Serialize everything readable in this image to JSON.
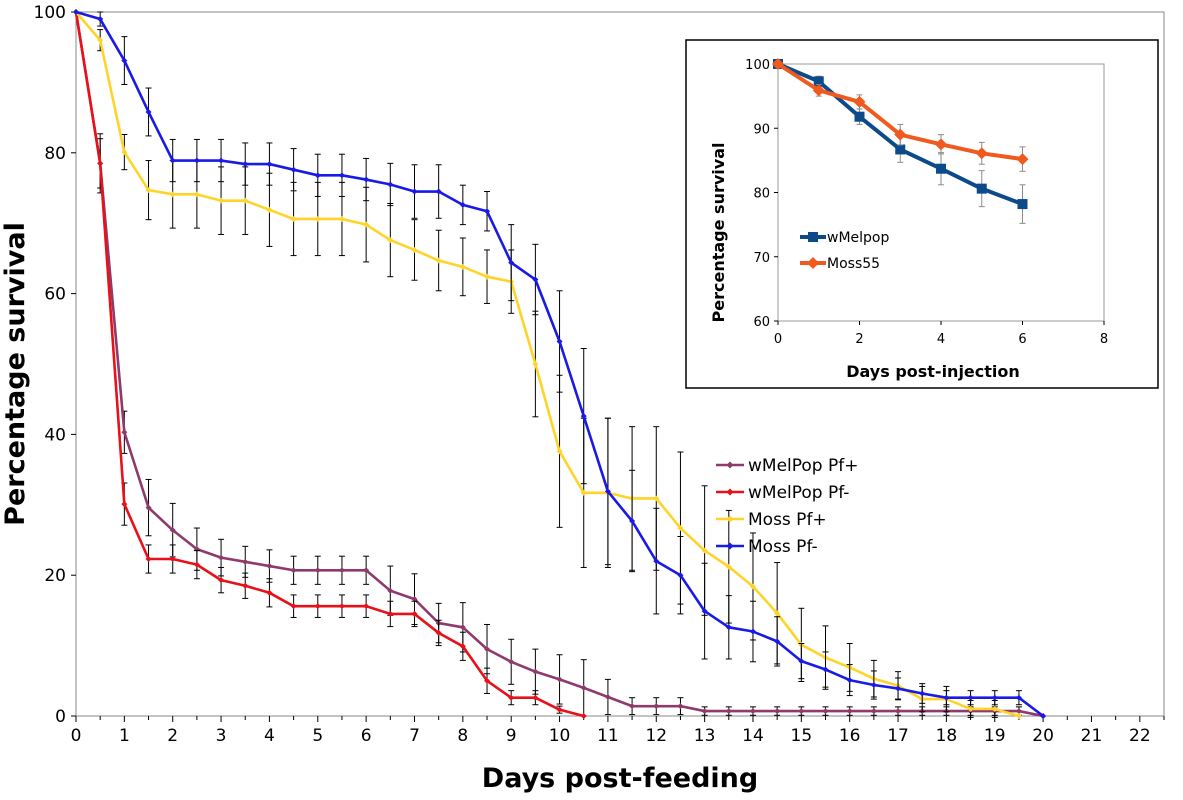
{
  "chart_data": [
    {
      "type": "line",
      "title": "",
      "xlabel": "Days post-feeding",
      "ylabel": "Percentage survival",
      "xlim": [
        0,
        22.5
      ],
      "ylim": [
        0,
        100
      ],
      "x_ticks": [
        0,
        1,
        2,
        3,
        4,
        5,
        6,
        7,
        8,
        9,
        10,
        11,
        12,
        13,
        14,
        15,
        16,
        17,
        18,
        19,
        20,
        21,
        22
      ],
      "y_ticks": [
        0,
        20,
        40,
        60,
        80,
        100
      ],
      "grid": false,
      "legend_position": "right",
      "series": [
        {
          "name": "wMelPop Pf+",
          "color": "#8e3a6c",
          "x": [
            0,
            0.5,
            1,
            1.5,
            2,
            2.5,
            3,
            3.5,
            4,
            4.5,
            5,
            5.5,
            6,
            6.5,
            7,
            7.5,
            8,
            8.5,
            9,
            9.5,
            10,
            10.5,
            11,
            11.5,
            12,
            12.5,
            13,
            13.5,
            14,
            14.5,
            15,
            15.5,
            16,
            16.5,
            17,
            17.5,
            18,
            18.5,
            19,
            19.5,
            20
          ],
          "y": [
            100,
            78.5,
            40.3,
            29.6,
            26.4,
            23.7,
            22.5,
            21.9,
            21.3,
            20.7,
            20.7,
            20.7,
            20.7,
            17.8,
            16.6,
            13.2,
            12.6,
            9.5,
            7.7,
            6.3,
            5.2,
            4.0,
            2.7,
            1.4,
            1.4,
            1.4,
            0.7,
            0.7,
            0.7,
            0.7,
            0.7,
            0.7,
            0.7,
            0.7,
            0.7,
            0.7,
            0.7,
            0.7,
            0.7,
            0.7,
            0
          ],
          "err": [
            0,
            4.2,
            3.0,
            4.0,
            3.8,
            3.0,
            2.6,
            2.2,
            2.3,
            2.0,
            2.0,
            2.0,
            2.0,
            3.5,
            3.6,
            2.8,
            3.5,
            3.5,
            3.2,
            3.2,
            3.5,
            4.0,
            2.5,
            1.2,
            1.2,
            1.2,
            0.6,
            0.6,
            0.6,
            0.6,
            0.6,
            0.6,
            0.6,
            0.6,
            0.6,
            0.6,
            0.6,
            0.6,
            0.6,
            0.6,
            0
          ]
        },
        {
          "name": "wMelPop Pf-",
          "color": "#e8111a",
          "x": [
            0,
            0.5,
            1,
            1.5,
            2,
            2.5,
            3,
            3.5,
            4,
            4.5,
            5,
            5.5,
            6,
            6.5,
            7,
            7.5,
            8,
            8.5,
            9,
            9.5,
            10,
            10.5
          ],
          "y": [
            100,
            78.5,
            30.1,
            22.3,
            22.3,
            21.5,
            19.3,
            18.5,
            17.5,
            15.6,
            15.6,
            15.6,
            15.6,
            14.5,
            14.5,
            11.8,
            9.9,
            5.0,
            2.6,
            2.6,
            0.9,
            0
          ],
          "err": [
            0,
            3.5,
            3.0,
            2.0,
            2.0,
            2.0,
            1.8,
            1.8,
            2.0,
            1.6,
            1.6,
            1.6,
            1.6,
            1.8,
            1.8,
            1.8,
            2.0,
            1.8,
            1.0,
            1.0,
            0.5,
            0
          ]
        },
        {
          "name": "Moss Pf+",
          "color": "#ffd42a",
          "x": [
            0,
            0.5,
            1,
            1.5,
            2,
            2.5,
            3,
            3.5,
            4,
            4.5,
            5,
            5.5,
            6,
            6.5,
            7,
            7.5,
            8,
            8.5,
            9,
            9.5,
            10,
            10.5,
            11,
            11.5,
            12,
            12.5,
            13,
            13.5,
            14,
            14.5,
            15,
            15.5,
            16,
            16.5,
            17,
            17.5,
            18,
            18.5,
            19,
            19.5
          ],
          "y": [
            100,
            96.0,
            80.1,
            74.7,
            74.1,
            74.1,
            73.2,
            73.2,
            71.9,
            70.6,
            70.6,
            70.6,
            69.8,
            67.6,
            66.2,
            64.7,
            63.8,
            62.4,
            61.7,
            50.0,
            37.6,
            31.7,
            31.7,
            30.9,
            30.9,
            26.7,
            23.5,
            21.2,
            18.4,
            14.6,
            10.1,
            8.3,
            6.9,
            5.3,
            4.3,
            2.4,
            2.4,
            1.0,
            1.0,
            0
          ],
          "err": [
            0,
            1.5,
            2.5,
            4.2,
            4.8,
            4.8,
            4.8,
            4.8,
            5.2,
            5.2,
            5.2,
            5.2,
            5.3,
            5.2,
            4.3,
            4.3,
            4.1,
            3.8,
            4.5,
            7.5,
            10.8,
            10.6,
            10.6,
            10.2,
            10.2,
            10.8,
            9.2,
            8.0,
            7.6,
            7.2,
            5.2,
            4.5,
            3.4,
            2.6,
            2.0,
            1.8,
            1.8,
            1.2,
            1.2,
            0
          ]
        },
        {
          "name": "Moss Pf-",
          "color": "#1a1ae6",
          "x": [
            0,
            0.5,
            1,
            1.5,
            2,
            2.5,
            3,
            3.5,
            4,
            4.5,
            5,
            5.5,
            6,
            6.5,
            7,
            7.5,
            8,
            8.5,
            9,
            9.5,
            10,
            10.5,
            11,
            11.5,
            12,
            12.5,
            13,
            13.5,
            14,
            14.5,
            15,
            15.5,
            16,
            16.5,
            17,
            17.5,
            18,
            18.5,
            19,
            19.5,
            20
          ],
          "y": [
            100,
            99.0,
            93.1,
            85.8,
            78.9,
            78.9,
            78.9,
            78.4,
            78.4,
            77.6,
            76.8,
            76.8,
            76.2,
            75.5,
            74.5,
            74.5,
            72.6,
            71.7,
            64.4,
            62.0,
            53.2,
            42.6,
            31.9,
            27.7,
            22.0,
            20.0,
            14.9,
            12.6,
            12.0,
            10.6,
            7.8,
            6.6,
            5.1,
            4.4,
            3.9,
            3.2,
            2.6,
            2.6,
            2.6,
            2.6,
            0
          ],
          "err": [
            0,
            1.0,
            3.4,
            3.4,
            3.0,
            3.0,
            3.0,
            3.0,
            3.0,
            3.0,
            3.0,
            3.0,
            3.0,
            3.0,
            3.8,
            3.8,
            2.8,
            2.8,
            5.4,
            5.0,
            7.2,
            9.6,
            10.4,
            7.2,
            7.5,
            5.5,
            6.8,
            4.5,
            4.3,
            3.5,
            2.5,
            2.5,
            2.2,
            2.0,
            1.5,
            1.4,
            1.0,
            1.0,
            1.0,
            1.0,
            0
          ]
        }
      ]
    },
    {
      "type": "line",
      "title": "",
      "xlabel": "Days post-injection",
      "ylabel": "Percentage survival",
      "xlim": [
        0,
        8
      ],
      "ylim": [
        60,
        100
      ],
      "x_ticks": [
        0,
        2,
        4,
        6,
        8
      ],
      "y_ticks": [
        60,
        70,
        80,
        90,
        100
      ],
      "grid": false,
      "legend_position": "left",
      "series": [
        {
          "name": "wMelpop",
          "color": "#0d4a8a",
          "marker": "square",
          "x": [
            0,
            1,
            2,
            3,
            4,
            5,
            6
          ],
          "y": [
            100,
            97.3,
            91.8,
            86.7,
            83.7,
            80.6,
            78.2
          ],
          "err": [
            0,
            0.8,
            1.2,
            2.0,
            2.5,
            2.8,
            3.0
          ]
        },
        {
          "name": "Moss55",
          "color": "#f05a1e",
          "marker": "diamond",
          "x": [
            0,
            1,
            2,
            3,
            4,
            5,
            6
          ],
          "y": [
            100,
            95.9,
            94.1,
            89.0,
            87.5,
            86.1,
            85.2
          ],
          "err": [
            0,
            0.9,
            1.1,
            1.6,
            1.5,
            1.7,
            1.9
          ]
        }
      ]
    }
  ]
}
